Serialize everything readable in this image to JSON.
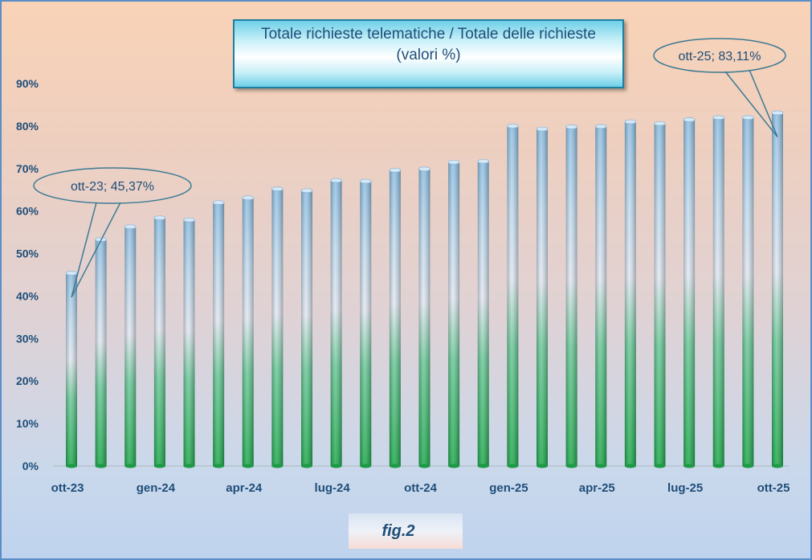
{
  "chart_data": {
    "type": "bar",
    "title": "Totale richieste telematiche / Totale delle richieste",
    "subtitle": "(valori %)",
    "ylim": [
      0,
      90
    ],
    "yticks": [
      "0%",
      "10%",
      "20%",
      "30%",
      "40%",
      "50%",
      "60%",
      "70%",
      "80%",
      "90%"
    ],
    "xtick_labels": [
      "ott-23",
      "gen-24",
      "apr-24",
      "lug-24",
      "ott-24",
      "gen-25",
      "apr-25",
      "lug-25",
      "ott-25"
    ],
    "xtick_every": 3,
    "categories": [
      "ott-23",
      "nov-23",
      "dic-23",
      "gen-24",
      "feb-24",
      "mar-24",
      "apr-24",
      "mag-24",
      "giu-24",
      "lug-24",
      "ago-24",
      "set-24",
      "ott-24",
      "nov-24",
      "dic-24",
      "gen-25",
      "feb-25",
      "mar-25",
      "apr-25",
      "mag-25",
      "giu-25",
      "lug-25",
      "ago-25",
      "set-25",
      "ott-25"
    ],
    "values": [
      45.37,
      53.3,
      56.3,
      58.4,
      57.9,
      62.0,
      63.1,
      65.2,
      64.8,
      67.2,
      67.0,
      69.6,
      69.9,
      71.5,
      71.7,
      80.0,
      79.3,
      79.8,
      79.9,
      81.0,
      80.6,
      81.5,
      82.0,
      82.0,
      83.11
    ],
    "annotations": [
      {
        "text": "ott-23; 45,37%",
        "category": "ott-23"
      },
      {
        "text": "ott-25; 83,11%",
        "category": "ott-25"
      }
    ],
    "grid": false,
    "legend": "none"
  },
  "footer": {
    "fig_label": "fig.2"
  }
}
